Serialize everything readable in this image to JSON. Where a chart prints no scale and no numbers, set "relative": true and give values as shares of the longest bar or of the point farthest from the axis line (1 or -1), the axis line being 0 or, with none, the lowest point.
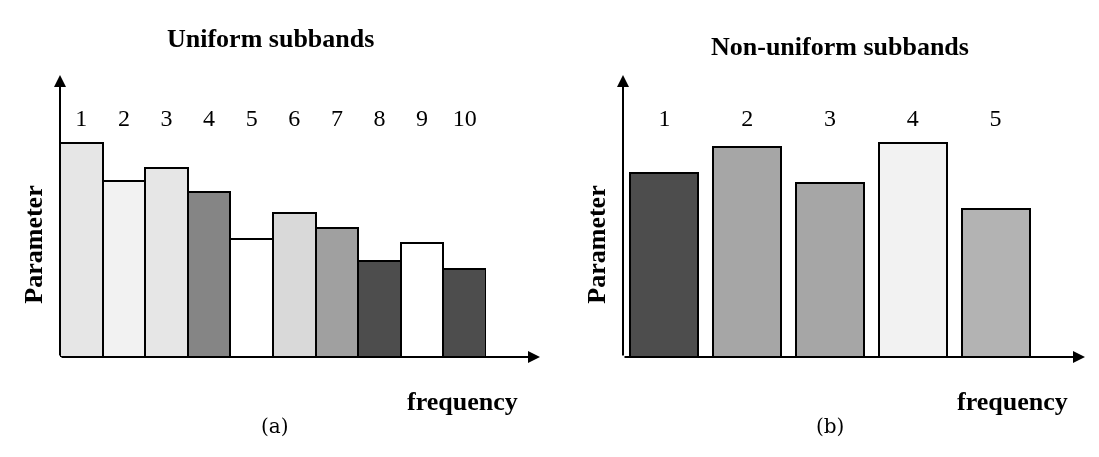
{
  "chart_data": [
    {
      "type": "bar",
      "title": "Uniform subbands",
      "xlabel": "frequency",
      "ylabel": "Parameter",
      "relative": true,
      "tick_labels": "x",
      "categories": [
        "1",
        "2",
        "3",
        "4",
        "5",
        "6",
        "7",
        "8",
        "9",
        "10"
      ],
      "values": [
        1,
        0.82,
        0.88,
        0.77,
        0.55,
        0.67,
        0.6,
        0.45,
        0.53,
        0.41
      ],
      "colors": [
        "#e6e6e6",
        "#f2f2f2",
        "#e6e6e6",
        "#858585",
        "#ffffff",
        "#d9d9d9",
        "#a0a0a0",
        "#4d4d4d",
        "#ffffff",
        "#4d4d4d"
      ],
      "annotations": [
        "(a)"
      ]
    },
    {
      "type": "bar",
      "title": "Non-uniform subbands",
      "xlabel": "frequency",
      "ylabel": "Parameter",
      "relative": true,
      "tick_labels": "x",
      "categories": [
        "1",
        "2",
        "3",
        "4",
        "5"
      ],
      "values": [
        0.86,
        0.98,
        0.81,
        1,
        0.69
      ],
      "colors": [
        "#4d4d4d",
        "#a6a6a6",
        "#a6a6a6",
        "#f2f2f2",
        "#b3b3b3"
      ],
      "annotations": [
        "(b)"
      ]
    }
  ]
}
